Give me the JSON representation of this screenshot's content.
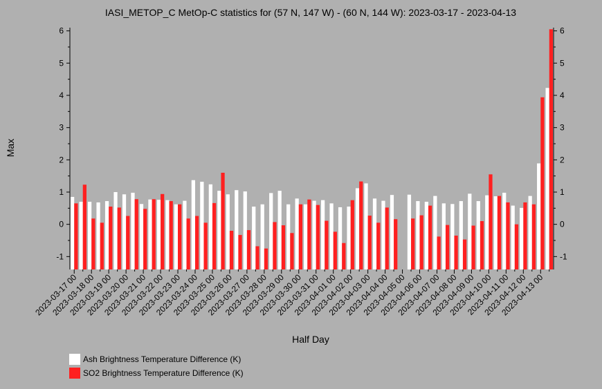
{
  "chart_data": {
    "type": "bar",
    "title": "IASI_METOP_C MetOp-C statistics for (57 N, 147 W) - (60 N, 144 W): 2023-03-17 - 2023-04-13",
    "xlabel": "Half Day",
    "ylabel": "Max",
    "ylim": [
      -1.4,
      6.1
    ],
    "yticks": [
      -1,
      0,
      1,
      2,
      3,
      4,
      5,
      6
    ],
    "date_labels": [
      "2023-03-17 00",
      "2023-03-18 00",
      "2023-03-19 00",
      "2023-03-20 00",
      "2023-03-21 00",
      "2023-03-22 00",
      "2023-03-23 00",
      "2023-03-24 00",
      "2023-03-25 00",
      "2023-03-26 00",
      "2023-03-27 00",
      "2023-03-28 00",
      "2023-03-29 00",
      "2023-03-30 00",
      "2023-03-31 00",
      "2023-04-01 00",
      "2023-04-02 00",
      "2023-04-03 00",
      "2023-04-04 00",
      "2023-04-05 00",
      "2023-04-06 00",
      "2023-04-07 00",
      "2023-04-08 00",
      "2023-04-09 00",
      "2023-04-10 00",
      "2023-04-11 00",
      "2023-04-12 00",
      "2023-04-13 00"
    ],
    "categories": [
      "2023-03-17 00",
      "2023-03-17 12",
      "2023-03-18 00",
      "2023-03-18 12",
      "2023-03-19 00",
      "2023-03-19 12",
      "2023-03-20 00",
      "2023-03-20 12",
      "2023-03-21 00",
      "2023-03-21 12",
      "2023-03-22 00",
      "2023-03-22 12",
      "2023-03-23 00",
      "2023-03-23 12",
      "2023-03-24 00",
      "2023-03-24 12",
      "2023-03-25 00",
      "2023-03-25 12",
      "2023-03-26 00",
      "2023-03-26 12",
      "2023-03-27 00",
      "2023-03-27 12",
      "2023-03-28 00",
      "2023-03-28 12",
      "2023-03-29 00",
      "2023-03-29 12",
      "2023-03-30 00",
      "2023-03-30 12",
      "2023-03-31 00",
      "2023-03-31 12",
      "2023-04-01 00",
      "2023-04-01 12",
      "2023-04-02 00",
      "2023-04-02 12",
      "2023-04-03 00",
      "2023-04-03 12",
      "2023-04-04 00",
      "2023-04-04 12",
      "2023-04-05 00",
      "2023-04-05 12",
      "2023-04-06 00",
      "2023-04-06 12",
      "2023-04-07 00",
      "2023-04-07 12",
      "2023-04-08 00",
      "2023-04-08 12",
      "2023-04-09 00",
      "2023-04-09 12",
      "2023-04-10 00",
      "2023-04-10 12",
      "2023-04-11 00",
      "2023-04-11 12",
      "2023-04-12 00",
      "2023-04-12 12",
      "2023-04-13 00",
      "2023-04-13 12"
    ],
    "series": [
      {
        "name": "Ash Brightness Temperature Difference (K)",
        "color": "#ffffff",
        "values": [
          0.85,
          0.7,
          0.7,
          0.68,
          0.72,
          1.0,
          0.93,
          0.98,
          0.63,
          0.77,
          0.76,
          0.75,
          0.62,
          0.73,
          1.37,
          1.32,
          1.24,
          1.04,
          0.93,
          1.06,
          1.02,
          0.55,
          0.62,
          0.97,
          1.04,
          0.62,
          0.8,
          0.62,
          0.73,
          0.75,
          0.65,
          0.53,
          0.55,
          1.12,
          1.27,
          0.8,
          0.73,
          0.91,
          null,
          0.92,
          0.72,
          0.7,
          0.88,
          0.65,
          0.63,
          0.72,
          0.95,
          0.72,
          0.9,
          0.87,
          0.98,
          0.58,
          0.51,
          0.88,
          1.89,
          4.23
        ]
      },
      {
        "name": "SO2 Brightness Temperature Difference (K)",
        "color": "#ff2020",
        "values": [
          0.65,
          1.23,
          0.18,
          0.05,
          0.55,
          0.52,
          0.26,
          0.78,
          0.48,
          0.78,
          0.94,
          0.72,
          0.62,
          0.18,
          0.26,
          0.05,
          0.66,
          1.6,
          -0.2,
          -0.33,
          -0.18,
          -0.68,
          -0.75,
          0.07,
          -0.03,
          -0.27,
          0.62,
          0.77,
          0.6,
          0.11,
          -0.23,
          -0.58,
          0.75,
          1.33,
          0.27,
          0.05,
          0.52,
          0.16,
          null,
          0.18,
          0.28,
          0.58,
          -0.38,
          -0.02,
          -0.35,
          -0.47,
          -0.04,
          0.1,
          1.55,
          0.88,
          0.68,
          0.0,
          0.68,
          0.62,
          3.94,
          6.05
        ]
      }
    ],
    "grid": false,
    "legend_position": "bottom-left"
  }
}
